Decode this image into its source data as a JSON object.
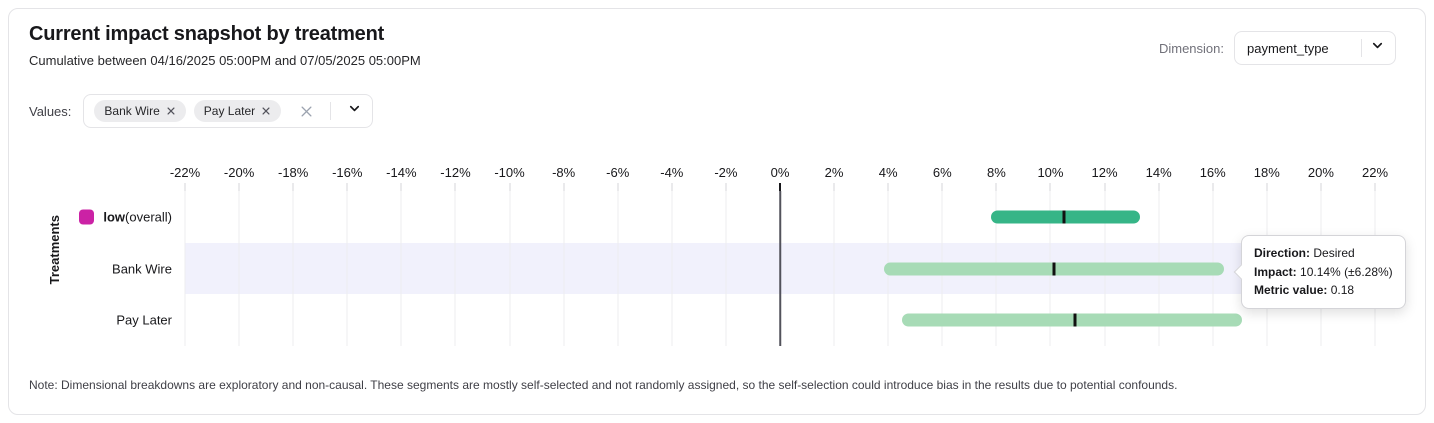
{
  "header": {
    "title": "Current impact snapshot by treatment",
    "subtitle": "Cumulative between 04/16/2025 05:00PM and 07/05/2025 05:00PM",
    "dimension": {
      "label": "Dimension:",
      "value": "payment_type"
    }
  },
  "filters": {
    "label": "Values:",
    "chips": [
      "Bank Wire",
      "Pay Later"
    ]
  },
  "chart_data": {
    "type": "bar",
    "variant": "horizontal-interval",
    "title": "Current impact snapshot by treatment",
    "xlabel": "",
    "ylabel": "Treatments",
    "x_ticks": [
      "-22%",
      "-20%",
      "-18%",
      "-16%",
      "-14%",
      "-12%",
      "-10%",
      "-8%",
      "-6%",
      "-4%",
      "-2%",
      "0%",
      "2%",
      "4%",
      "6%",
      "8%",
      "10%",
      "12%",
      "14%",
      "16%",
      "18%",
      "20%",
      "22%"
    ],
    "xlim": [
      -22,
      22
    ],
    "grid": true,
    "zero_line": true,
    "marker_color": "#111111",
    "highlight_color": "#f1f1fc",
    "rows": [
      {
        "label": "low",
        "suffix": " (overall)",
        "swatch_color": "#cb22a5",
        "impact": 10.5,
        "ci_low": 7.8,
        "ci_high": 13.3,
        "bar_color": "#36b587",
        "highlighted": false
      },
      {
        "label": "Bank Wire",
        "suffix": "",
        "swatch_color": "",
        "impact": 10.14,
        "ci_low": 3.86,
        "ci_high": 16.42,
        "bar_color": "#a7dbb6",
        "highlighted": true
      },
      {
        "label": "Pay Later",
        "suffix": "",
        "swatch_color": "",
        "impact": 10.9,
        "ci_low": 4.5,
        "ci_high": 17.1,
        "bar_color": "#a7dbb6",
        "highlighted": false
      }
    ]
  },
  "tooltip": {
    "rows": [
      {
        "label": "Direction:",
        "value": "Desired"
      },
      {
        "label": "Impact:",
        "value": "10.14% (±6.28%)"
      },
      {
        "label": "Metric value:",
        "value": "0.18"
      }
    ]
  },
  "note": "Note: Dimensional breakdowns are exploratory and non-causal. These segments are mostly self-selected and not randomly assigned, so the self-selection could introduce bias in the results due to potential confounds."
}
